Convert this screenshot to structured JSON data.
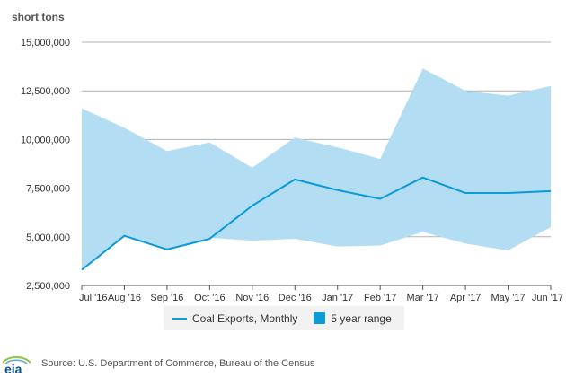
{
  "source": {
    "logo": "eia",
    "text": "Source: U.S. Department of Commerce, Bureau of the Census"
  },
  "colors": {
    "line": "#0a9bd8",
    "range": "#b3ddf2",
    "grid": "#b0b0b0",
    "axis": "#555555"
  },
  "chart_data": {
    "type": "line",
    "title": "",
    "ylabel": "short tons",
    "xlabel": "",
    "ylim": [
      2500000,
      15000000
    ],
    "yticks": [
      2500000,
      5000000,
      7500000,
      10000000,
      12500000,
      15000000
    ],
    "ytick_labels": [
      "2,500,000",
      "5,000,000",
      "7,500,000",
      "10,000,000",
      "12,500,000",
      "15,000,000"
    ],
    "categories": [
      "Jul '16",
      "Aug '16",
      "Sep '16",
      "Oct '16",
      "Nov '16",
      "Dec '16",
      "Jan '17",
      "Feb '17",
      "Mar '17",
      "Apr '17",
      "May '17",
      "Jun '17"
    ],
    "grid": true,
    "legend_position": "bottom-center",
    "series": [
      {
        "name": "Coal Exports, Monthly",
        "kind": "line",
        "values": [
          3300000,
          5050000,
          4350000,
          4900000,
          6600000,
          7950000,
          7400000,
          6950000,
          8050000,
          7250000,
          7250000,
          7350000
        ]
      },
      {
        "name": "5 year range",
        "kind": "range",
        "upper": [
          11600000,
          10600000,
          9400000,
          9850000,
          8550000,
          10100000,
          9600000,
          9000000,
          13650000,
          12500000,
          12250000,
          12750000
        ],
        "lower": [
          3300000,
          5050000,
          4350000,
          4950000,
          4800000,
          4900000,
          4500000,
          4550000,
          5250000,
          4650000,
          4300000,
          5500000
        ]
      }
    ]
  }
}
